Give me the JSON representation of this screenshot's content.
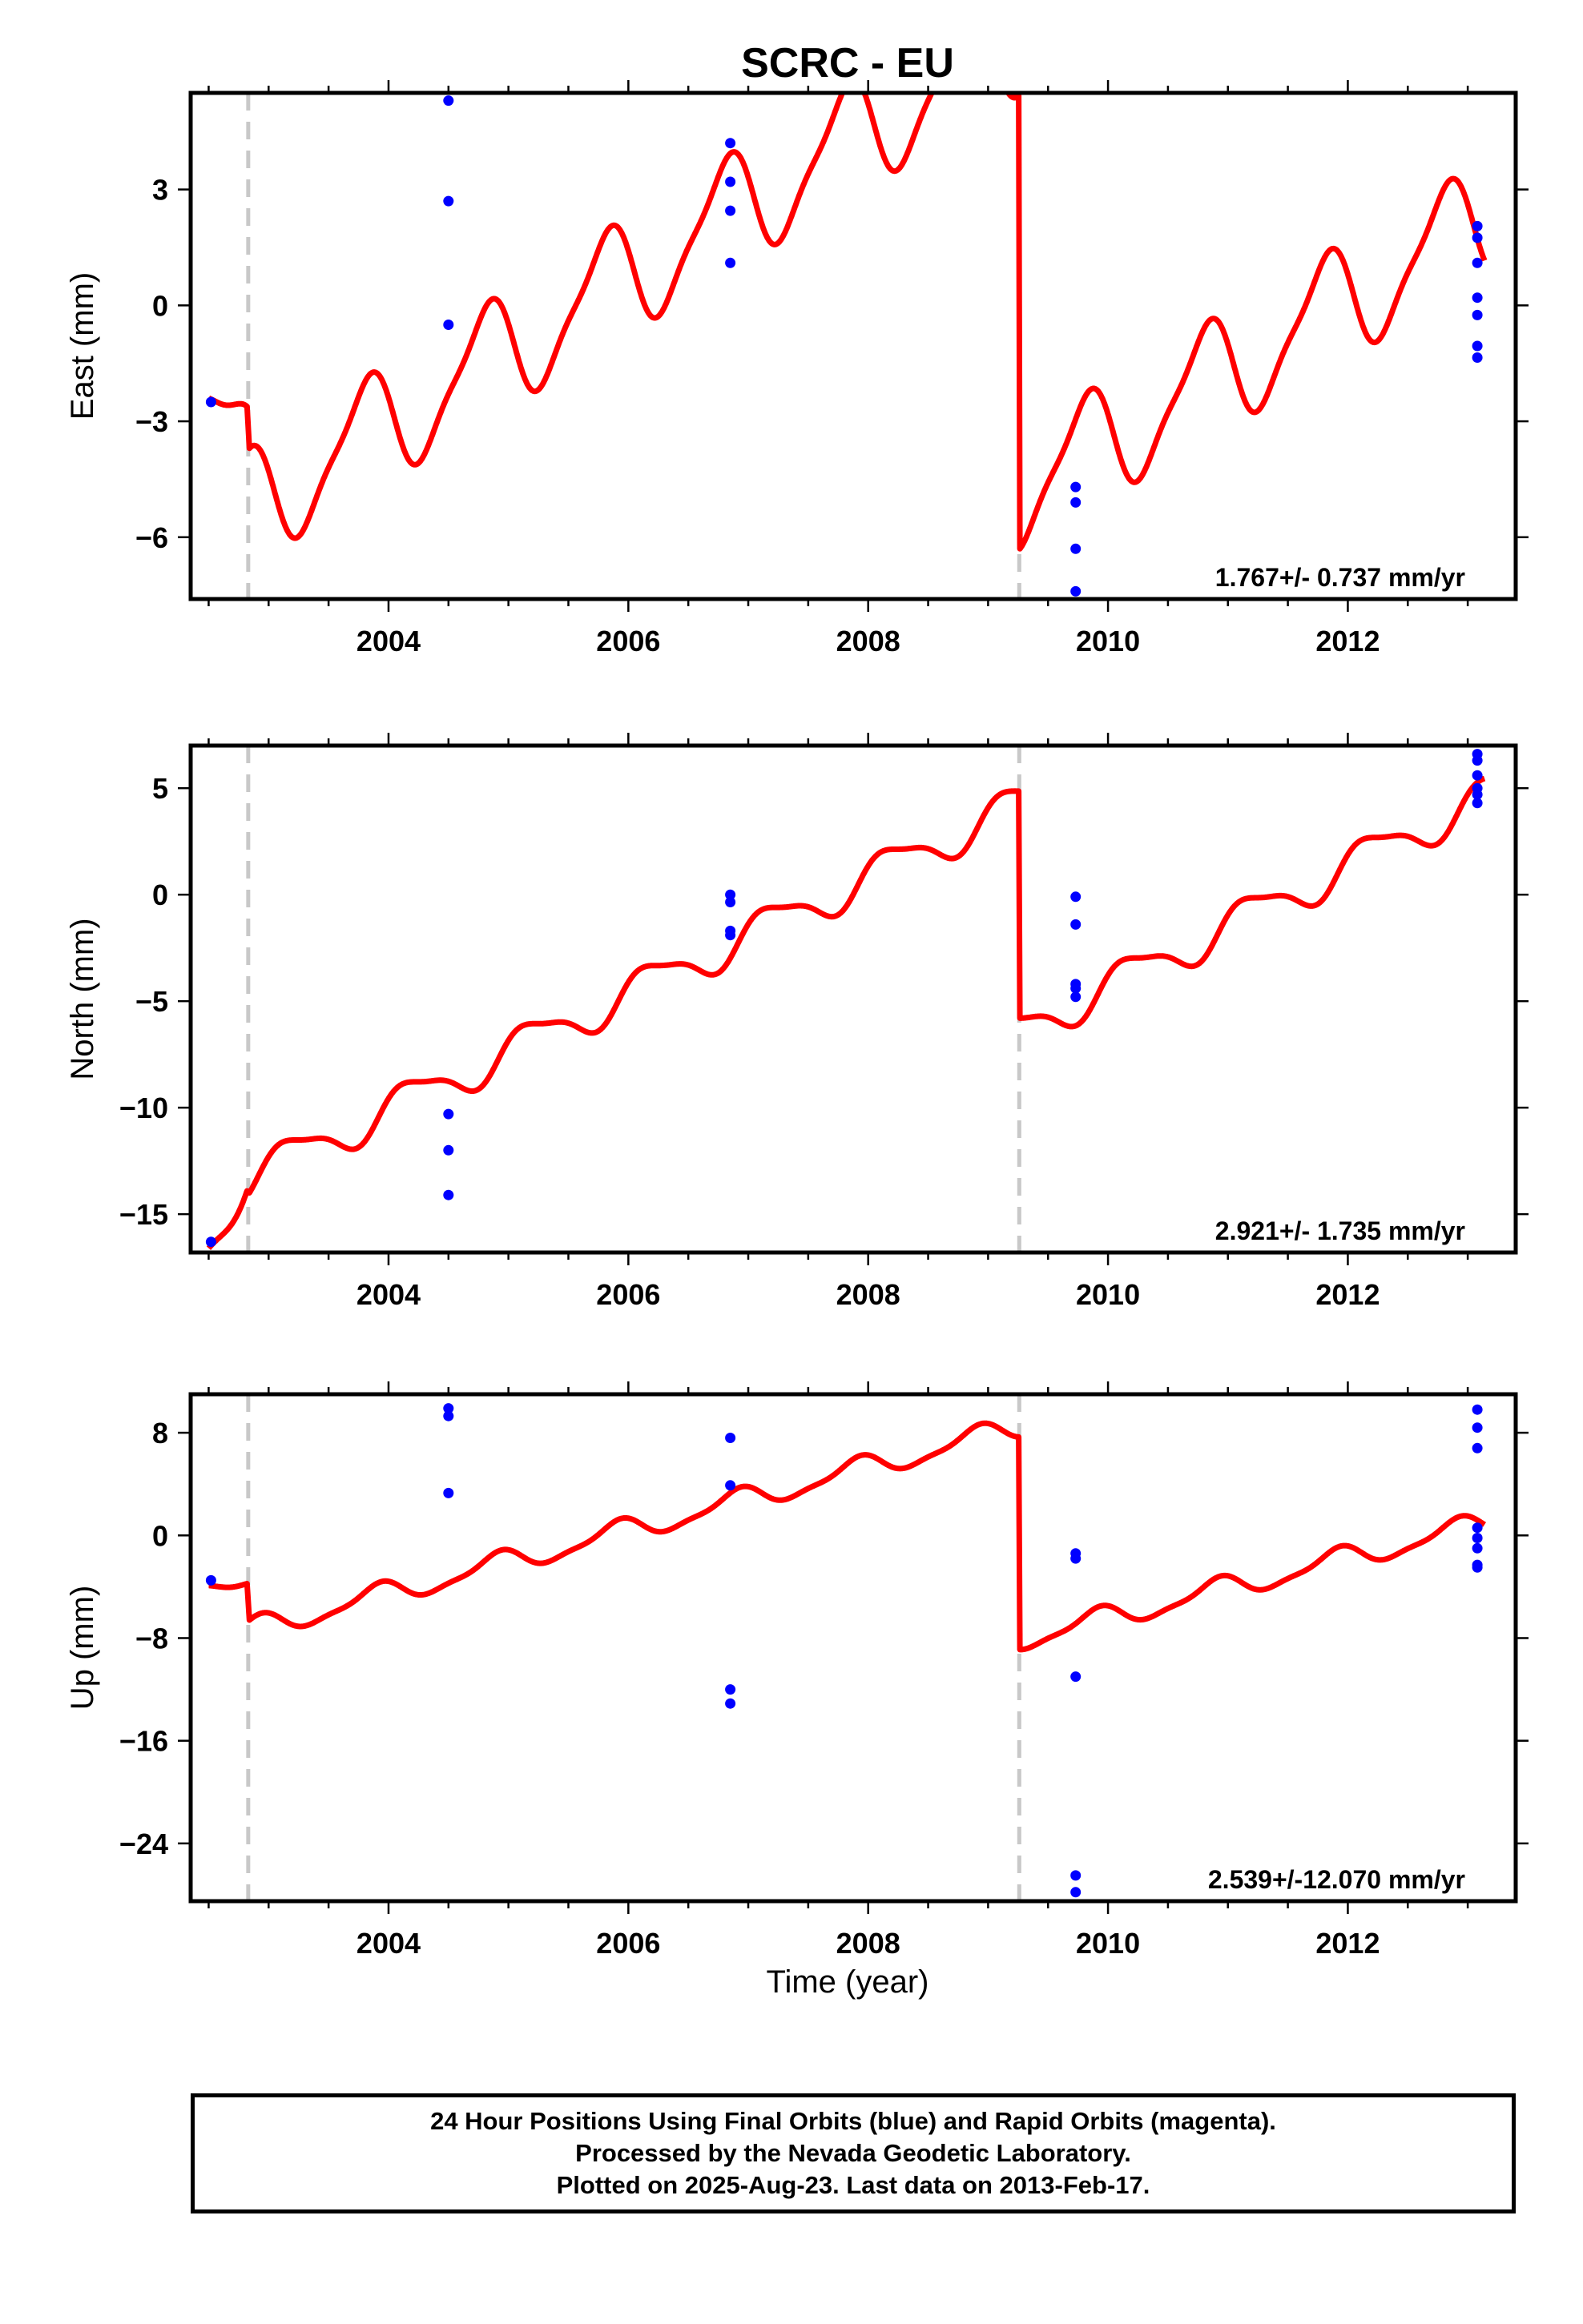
{
  "chart_data": {
    "type": "line",
    "title": "SCRC - EU",
    "xlabel": "Time (year)",
    "xlim": [
      2002.35,
      2013.4
    ],
    "x_ticks": [
      2004,
      2006,
      2008,
      2010,
      2012
    ],
    "offset_epochs": [
      2002.83,
      2009.26
    ],
    "series_colors": {
      "model": "#ff0000",
      "data": "#0000ff",
      "offsets": "#c8c8c8"
    },
    "panels": [
      {
        "component": "east",
        "ylabel": "East (mm)",
        "ylim": [
          -7.6,
          5.5
        ],
        "y_ticks": [
          -6,
          -3,
          0,
          3
        ],
        "rate_text": "1.767+/- 0.737 mm/yr",
        "model": {
          "segments": [
            {
              "from": 2002.5,
              "to": 2002.82,
              "start": -2.4,
              "rate": -6.0
            },
            {
              "from": 2002.84,
              "to": 2009.255,
              "start": -3.7,
              "rate": 1.9
            },
            {
              "from": 2009.265,
              "to": 2013.14,
              "start": -6.3,
              "rate": 1.81
            }
          ],
          "annual_amplitude": 1.4,
          "annual_phase_year": 2003.55,
          "semiannual_amplitude": 0.35,
          "semiannual_phase_year": 2003.3
        },
        "points": [
          [
            2002.52,
            -2.5
          ],
          [
            2004.5,
            5.3
          ],
          [
            2004.5,
            2.7
          ],
          [
            2004.5,
            -0.5
          ],
          [
            2006.85,
            4.2
          ],
          [
            2006.85,
            3.2
          ],
          [
            2006.85,
            2.45
          ],
          [
            2006.85,
            1.1
          ],
          [
            2009.73,
            -4.7
          ],
          [
            2009.73,
            -5.1
          ],
          [
            2009.73,
            -6.3
          ],
          [
            2009.73,
            -7.4
          ],
          [
            2013.08,
            2.05
          ],
          [
            2013.08,
            1.75
          ],
          [
            2013.08,
            1.1
          ],
          [
            2013.08,
            0.2
          ],
          [
            2013.08,
            -0.25
          ],
          [
            2013.08,
            -1.05
          ],
          [
            2013.08,
            -1.35
          ]
        ]
      },
      {
        "component": "north",
        "ylabel": "North (mm)",
        "ylim": [
          -16.8,
          7.0
        ],
        "y_ticks": [
          -15,
          -10,
          -5,
          0,
          5
        ],
        "rate_text": "2.921+/- 1.735 mm/yr",
        "model": {
          "segments": [
            {
              "from": 2002.5,
              "to": 2002.82,
              "start": -16.6,
              "rate": 11.0
            },
            {
              "from": 2002.84,
              "to": 2009.255,
              "start": -14.0,
              "rate": 2.73
            },
            {
              "from": 2009.265,
              "to": 2013.14,
              "start": -5.8,
              "rate": 2.83
            }
          ],
          "annual_amplitude": 0.9,
          "annual_phase_year": 2003.95,
          "semiannual_amplitude": 0.25,
          "semiannual_phase_year": 2003.4
        },
        "points": [
          [
            2002.52,
            -16.3
          ],
          [
            2004.5,
            -10.3
          ],
          [
            2004.5,
            -12.0
          ],
          [
            2004.5,
            -14.1
          ],
          [
            2006.85,
            0.0
          ],
          [
            2006.85,
            -0.35
          ],
          [
            2006.85,
            -1.7
          ],
          [
            2006.85,
            -1.9
          ],
          [
            2009.73,
            -0.1
          ],
          [
            2009.73,
            -1.4
          ],
          [
            2009.73,
            -4.2
          ],
          [
            2009.73,
            -4.4
          ],
          [
            2009.73,
            -4.8
          ],
          [
            2013.08,
            6.6
          ],
          [
            2013.08,
            6.3
          ],
          [
            2013.08,
            5.6
          ],
          [
            2013.08,
            5.0
          ],
          [
            2013.08,
            4.7
          ],
          [
            2013.08,
            4.3
          ]
        ]
      },
      {
        "component": "up",
        "ylabel": "Up (mm)",
        "ylim": [
          -28.5,
          11.0
        ],
        "y_ticks": [
          -24,
          -16,
          -8,
          0,
          8
        ],
        "rate_text": "2.539+/-12.070 mm/yr",
        "model": {
          "segments": [
            {
              "from": 2002.5,
              "to": 2002.82,
              "start": -3.9,
              "rate": -3.0
            },
            {
              "from": 2002.84,
              "to": 2009.255,
              "start": -6.6,
              "rate": 2.46
            },
            {
              "from": 2009.265,
              "to": 2013.14,
              "start": -8.9,
              "rate": 2.33
            }
          ],
          "annual_amplitude": 0.85,
          "annual_phase_year": 2003.65,
          "semiannual_amplitude": 0.25,
          "semiannual_phase_year": 2003.35
        },
        "points": [
          [
            2002.52,
            -3.5
          ],
          [
            2004.5,
            9.9
          ],
          [
            2004.5,
            9.3
          ],
          [
            2004.5,
            3.3
          ],
          [
            2006.85,
            7.6
          ],
          [
            2006.85,
            3.9
          ],
          [
            2006.85,
            -12.0
          ],
          [
            2006.85,
            -13.1
          ],
          [
            2009.73,
            -1.4
          ],
          [
            2009.73,
            -1.8
          ],
          [
            2009.73,
            -11.0
          ],
          [
            2009.73,
            -26.5
          ],
          [
            2009.73,
            -27.8
          ],
          [
            2013.08,
            9.8
          ],
          [
            2013.08,
            8.4
          ],
          [
            2013.08,
            6.8
          ],
          [
            2013.08,
            0.6
          ],
          [
            2013.08,
            -0.2
          ],
          [
            2013.08,
            -1.0
          ],
          [
            2013.08,
            -2.3
          ],
          [
            2013.08,
            -2.5
          ]
        ]
      }
    ]
  },
  "footer": {
    "line1": "24 Hour Positions Using Final Orbits (blue) and Rapid Orbits (magenta).",
    "line2": "Processed by the Nevada Geodetic Laboratory.",
    "line3": "Plotted on 2025-Aug-23. Last data on 2013-Feb-17."
  }
}
